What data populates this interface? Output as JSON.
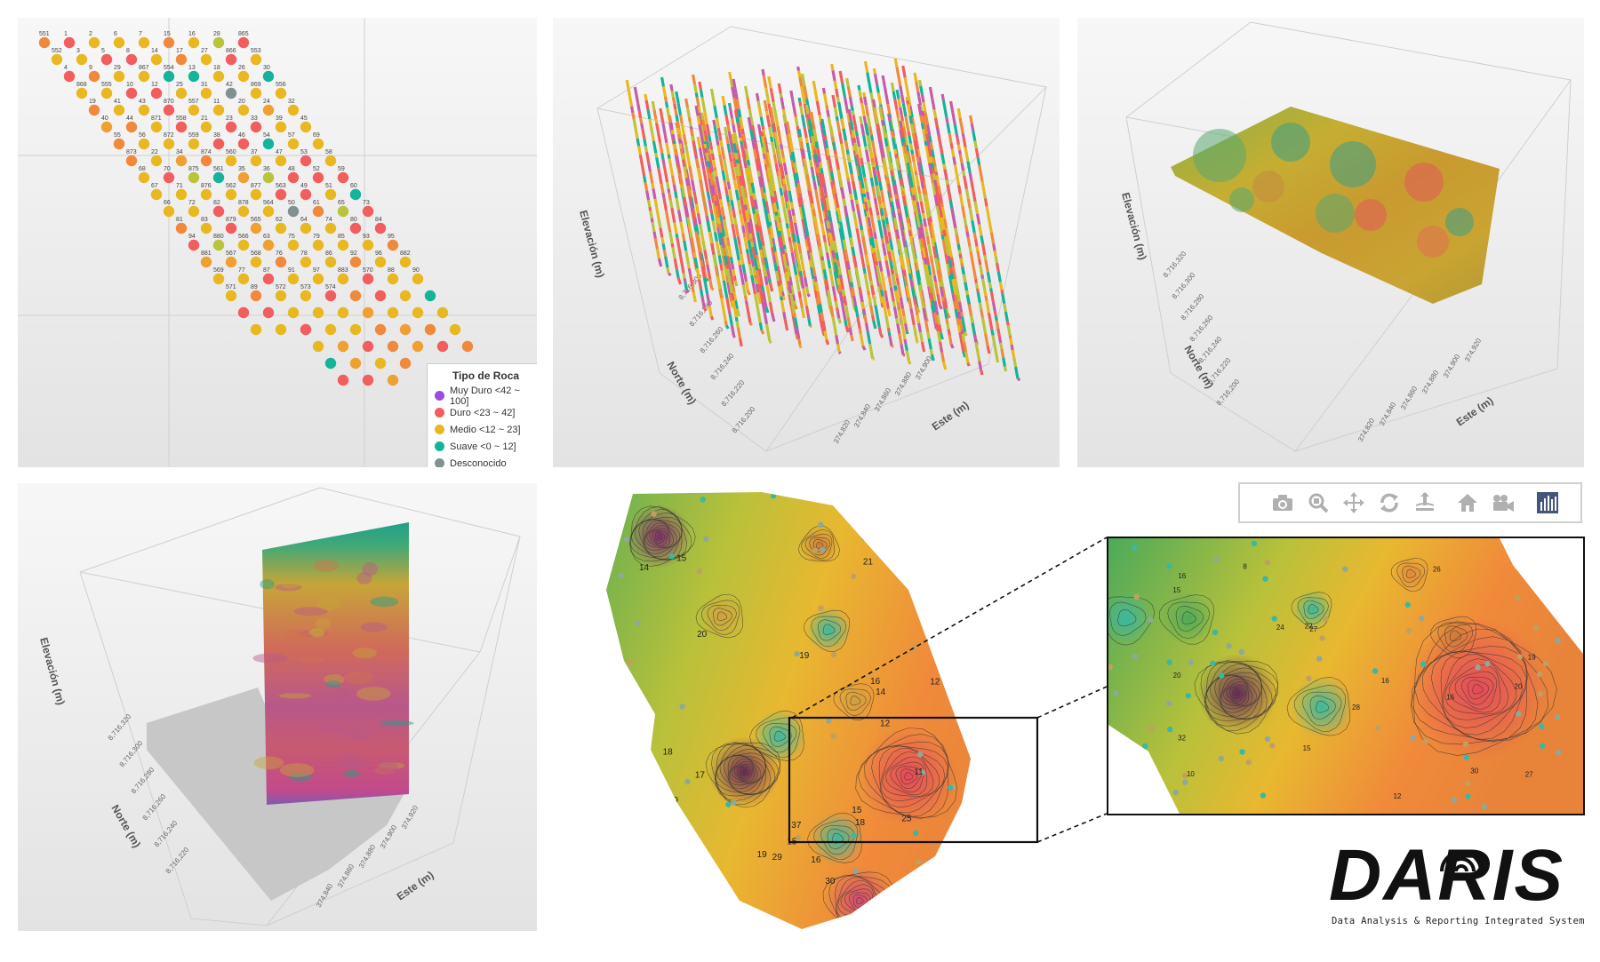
{
  "chart_data": [
    {
      "type": "scatter",
      "legend": {
        "title": "Tipo de Roca",
        "placement": "bottom-right",
        "items": [
          {
            "label": "Muy Duro <42 ~ 100]",
            "color": "#9b4de0"
          },
          {
            "label": "Duro <23 ~ 42]",
            "color": "#f25d5d"
          },
          {
            "label": "Medio <12 ~ 23]",
            "color": "#e9b820"
          },
          {
            "label": "Suave <0 ~ 12]",
            "color": "#14b39a"
          },
          {
            "label": "Desconocido",
            "color": "#7f9191"
          }
        ]
      },
      "well_labels": [
        "551",
        "1",
        "2",
        "6",
        "7",
        "15",
        "16",
        "28",
        "865",
        "552",
        "3",
        "5",
        "8",
        "14",
        "17",
        "27",
        "866",
        "553",
        "4",
        "9",
        "29",
        "867",
        "554",
        "13",
        "18",
        "26",
        "30",
        "868",
        "555",
        "10",
        "12",
        "25",
        "31",
        "42",
        "869",
        "556",
        "19",
        "41",
        "43",
        "870",
        "557",
        "11",
        "20",
        "24",
        "32",
        "40",
        "44",
        "871",
        "558",
        "21",
        "23",
        "33",
        "39",
        "45",
        "55",
        "56",
        "872",
        "559",
        "38",
        "46",
        "54",
        "57",
        "69",
        "873",
        "22",
        "34",
        "874",
        "560",
        "37",
        "47",
        "53",
        "58",
        "68",
        "70",
        "875",
        "561",
        "35",
        "36",
        "48",
        "52",
        "59",
        "67",
        "71",
        "876",
        "562",
        "877",
        "563",
        "49",
        "51",
        "60",
        "66",
        "72",
        "82",
        "878",
        "564",
        "50",
        "61",
        "65",
        "73",
        "81",
        "83",
        "879",
        "565",
        "62",
        "64",
        "74",
        "80",
        "84",
        "94",
        "880",
        "566",
        "63",
        "75",
        "79",
        "85",
        "93",
        "95",
        "881",
        "567",
        "568",
        "76",
        "78",
        "86",
        "92",
        "96",
        "882",
        "569",
        "77",
        "87",
        "91",
        "97",
        "883",
        "570",
        "88",
        "90",
        "571",
        "89",
        "572",
        "573",
        "574"
      ]
    },
    {
      "type": "scatter",
      "subtype": "3d-drillholes",
      "axes": {
        "z_label": "Elevación (m)",
        "y_label": "Norte (m)",
        "x_label": "Este (m)",
        "y_ticks": [
          "8,716,300",
          "8,716,280",
          "8,716,260",
          "8,716,240",
          "8,716,220",
          "8,716,200"
        ],
        "x_ticks": [
          "374,820",
          "374,840",
          "374,860",
          "374,880",
          "374,900"
        ]
      }
    },
    {
      "type": "heatmap",
      "subtype": "3d-surface",
      "axes": {
        "z_label": "Elevación (m)",
        "y_label": "Norte (m)",
        "x_label": "Este (m)",
        "y_ticks": [
          "8,716,320",
          "8,716,300",
          "8,716,280",
          "8,716,260",
          "8,716,240",
          "8,716,220",
          "8,716,200"
        ],
        "x_ticks": [
          "374,820",
          "374,840",
          "374,860",
          "374,880",
          "374,900",
          "374,920"
        ]
      }
    },
    {
      "type": "heatmap",
      "subtype": "3d-section",
      "axes": {
        "z_label": "Elevación (m)",
        "y_label": "Norte (m)",
        "x_label": "Este (m)",
        "y_ticks": [
          "8,716,320",
          "8,716,300",
          "8,716,280",
          "8,716,260",
          "8,716,240",
          "8,716,220"
        ],
        "x_ticks": [
          "374,840",
          "374,860",
          "374,880",
          "374,900",
          "374,920"
        ]
      }
    },
    {
      "type": "heatmap",
      "subtype": "contour-map",
      "contour_labels": [
        "19",
        "37",
        "19",
        "14",
        "12",
        "19",
        "15",
        "18",
        "16",
        "20",
        "17",
        "25",
        "29",
        "30",
        "21",
        "16",
        "15",
        "18",
        "11",
        "14",
        "15",
        "12"
      ],
      "zoom_labels": [
        "16",
        "20",
        "10",
        "8",
        "27",
        "30",
        "32",
        "26",
        "24",
        "12",
        "15",
        "20",
        "16",
        "27",
        "15",
        "19",
        "28",
        "16",
        "22"
      ]
    }
  ],
  "toolbar": {
    "icons": [
      "camera-icon",
      "zoom-icon",
      "pan-icon",
      "orbit-icon",
      "turntable-icon",
      "home-icon",
      "video-camera-icon",
      "chart-icon"
    ]
  },
  "logo": {
    "word": "DARIS",
    "tagline": "Data Analysis & Reporting Integrated System"
  }
}
